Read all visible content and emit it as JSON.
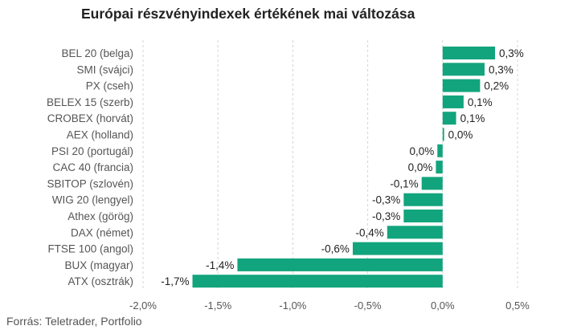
{
  "chart_data": {
    "type": "bar",
    "orientation": "horizontal",
    "title": "Európai részvényindexek értékének mai változása",
    "source": "Forrás: Teletrader, Portfolio",
    "categories": [
      "BEL 20 (belga)",
      "SMI (svájci)",
      "PX (cseh)",
      "BELEX 15 (szerb)",
      "CROBEX (horvát)",
      "AEX (holland)",
      "PSI 20 (portugál)",
      "CAC 40 (francia)",
      "SBITOP (szlovén)",
      "WIG 20 (lengyel)",
      "Athex (görög)",
      "DAX (német)",
      "FTSE 100 (angol)",
      "BUX (magyar)",
      "ATX (osztrák)"
    ],
    "values": [
      0.35,
      0.28,
      0.25,
      0.14,
      0.09,
      0.01,
      -0.035,
      -0.045,
      -0.14,
      -0.26,
      -0.26,
      -0.37,
      -0.6,
      -1.37,
      -1.67
    ],
    "data_labels": [
      "0,3%",
      "0,3%",
      "0,2%",
      "0,1%",
      "0,1%",
      "0,0%",
      "0,0%",
      "0,0%",
      "-0,1%",
      "-0,3%",
      "-0,3%",
      "-0,4%",
      "-0,6%",
      "-1,4%",
      "-1,7%"
    ],
    "xlim": [
      -2.0,
      0.5
    ],
    "xticks": [
      -2.0,
      -1.5,
      -1.0,
      -0.5,
      0.0,
      0.5
    ],
    "xtick_labels": [
      "-2,0%",
      "-1,5%",
      "-1,0%",
      "-0,5%",
      "0,0%",
      "0,5%"
    ],
    "grid": "vertical dashed",
    "bar_color": "#12a47c"
  }
}
